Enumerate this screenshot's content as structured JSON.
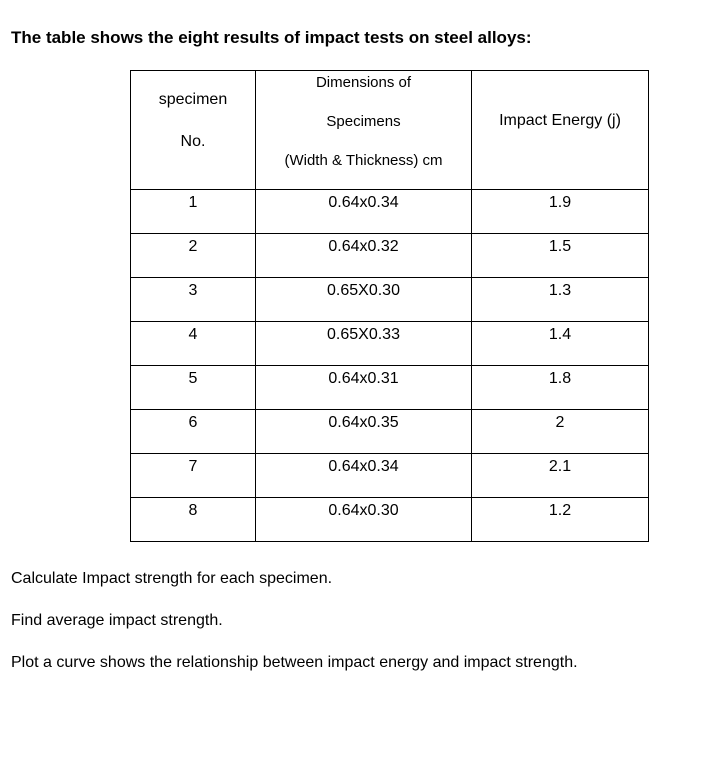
{
  "heading": "The table shows the eight results of impact tests on steel alloys:",
  "table": {
    "headers": {
      "specimen": [
        "specimen",
        "No."
      ],
      "dimensions": [
        "Dimensions of",
        "Specimens",
        "(Width & Thickness) cm"
      ],
      "energy": [
        "Impact Energy (j)"
      ]
    },
    "rows": [
      {
        "no": "1",
        "dim": "0.64x0.34",
        "energy": "1.9"
      },
      {
        "no": "2",
        "dim": "0.64x0.32",
        "energy": "1.5"
      },
      {
        "no": "3",
        "dim": "0.65X0.30",
        "energy": "1.3"
      },
      {
        "no": "4",
        "dim": "0.65X0.33",
        "energy": "1.4"
      },
      {
        "no": "5",
        "dim": "0.64x0.31",
        "energy": "1.8"
      },
      {
        "no": "6",
        "dim": "0.64x0.35",
        "energy": "2"
      },
      {
        "no": "7",
        "dim": "0.64x0.34",
        "energy": "2.1"
      },
      {
        "no": "8",
        "dim": "0.64x0.30",
        "energy": "1.2"
      }
    ]
  },
  "questions": [
    "Calculate Impact strength for each specimen.",
    "Find average impact strength.",
    "Plot a curve shows the relationship between impact energy and impact strength."
  ]
}
